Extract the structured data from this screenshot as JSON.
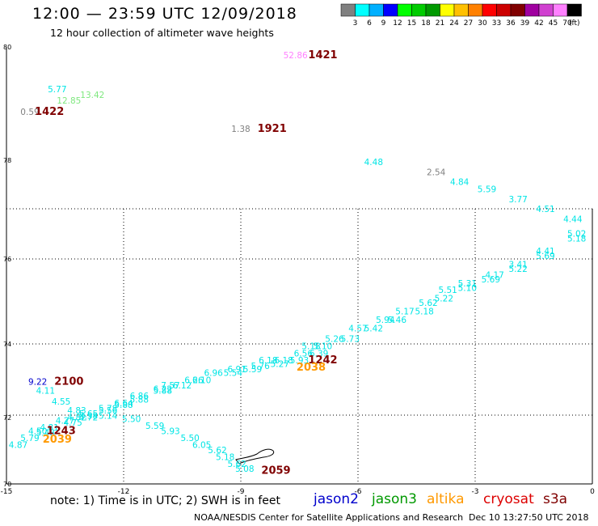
{
  "header": {
    "title": "12:00 — 23:59 UTC 12/09/2018",
    "subtitle": "12 hour collection of altimeter wave heights"
  },
  "colorbar": {
    "unit": "(ft)",
    "bins": [
      {
        "label": "3",
        "color": "#808080"
      },
      {
        "label": "6",
        "color": "#00ffff"
      },
      {
        "label": "9",
        "color": "#00b0ff"
      },
      {
        "label": "12",
        "color": "#0000ff"
      },
      {
        "label": "15",
        "color": "#00ff00"
      },
      {
        "label": "18",
        "color": "#00cc00"
      },
      {
        "label": "21",
        "color": "#009900"
      },
      {
        "label": "24",
        "color": "#ffff00"
      },
      {
        "label": "27",
        "color": "#ffc000"
      },
      {
        "label": "30",
        "color": "#ff8000"
      },
      {
        "label": "33",
        "color": "#ff0000"
      },
      {
        "label": "36",
        "color": "#cc0000"
      },
      {
        "label": "39",
        "color": "#800000"
      },
      {
        "label": "42",
        "color": "#a000a0"
      },
      {
        "label": "45",
        "color": "#d040d0"
      },
      {
        "label": "70",
        "color": "#ff80ff"
      },
      {
        "label": "",
        "color": "#000000"
      }
    ]
  },
  "footer": {
    "note": "note: 1) Time is in UTC; 2) SWH is in feet",
    "credit": "NOAA/NESDIS Center for Satellite Applications and Research",
    "timestamp": "Dec 10 13:27:50 UTC 2018",
    "missions": [
      {
        "name": "jason2",
        "color": "#0000cc"
      },
      {
        "name": "jason3",
        "color": "#009900"
      },
      {
        "name": "altika",
        "color": "#ff9900"
      },
      {
        "name": "cryosat",
        "color": "#dd0000"
      },
      {
        "name": "s3a",
        "color": "#800000"
      }
    ]
  },
  "chart_data": {
    "type": "scatter",
    "title": "12:00 — 23:59 UTC 12/09/2018",
    "xlim": [
      -15,
      0
    ],
    "ylim": [
      70,
      80
    ],
    "xticks": [
      "-15",
      "-12",
      "-9",
      "-6",
      "-3",
      "0"
    ],
    "yticks": [
      "70",
      "72",
      "74",
      "76",
      "78",
      "80"
    ],
    "grid": true,
    "points": [
      {
        "x": -13.7,
        "y": 79.2,
        "label": "5.77",
        "color": "#00e5e5"
      },
      {
        "x": -12.8,
        "y": 79.1,
        "label": "13.42",
        "color": "#7fe87f"
      },
      {
        "x": -13.4,
        "y": 79.0,
        "label": "12.85",
        "color": "#7fe87f"
      },
      {
        "x": -14.4,
        "y": 78.8,
        "label": "0.59",
        "color": "#808080"
      },
      {
        "x": -9.0,
        "y": 78.5,
        "label": "1.38",
        "color": "#808080"
      },
      {
        "x": -7.6,
        "y": 79.8,
        "label": "52.86",
        "color": "#ff80ff"
      },
      {
        "x": -5.6,
        "y": 77.9,
        "label": "4.48",
        "color": "#00e5e5"
      },
      {
        "x": -4.0,
        "y": 77.7,
        "label": "2.54",
        "color": "#808080"
      },
      {
        "x": -3.4,
        "y": 77.5,
        "label": "4.84",
        "color": "#00e5e5"
      },
      {
        "x": -2.7,
        "y": 77.35,
        "label": "5.59",
        "color": "#00e5e5"
      },
      {
        "x": -1.9,
        "y": 77.15,
        "label": "3.77",
        "color": "#00e5e5"
      },
      {
        "x": -1.2,
        "y": 76.95,
        "label": "4.51",
        "color": "#00e5e5"
      },
      {
        "x": -0.5,
        "y": 76.75,
        "label": "4.44",
        "color": "#00e5e5"
      },
      {
        "x": -0.4,
        "y": 76.45,
        "label": "5.02",
        "color": "#00e5e5"
      },
      {
        "x": -0.4,
        "y": 76.35,
        "label": "5.18",
        "color": "#00e5e5"
      },
      {
        "x": -1.2,
        "y": 76.1,
        "label": "4.41",
        "color": "#00e5e5"
      },
      {
        "x": -1.2,
        "y": 76.0,
        "label": "5.69",
        "color": "#00e5e5"
      },
      {
        "x": -1.9,
        "y": 75.8,
        "label": "3.41",
        "color": "#00e5e5"
      },
      {
        "x": -1.9,
        "y": 75.7,
        "label": "5.22",
        "color": "#00e5e5"
      },
      {
        "x": -2.5,
        "y": 75.55,
        "label": "4.17",
        "color": "#00e5e5"
      },
      {
        "x": -2.6,
        "y": 75.45,
        "label": "5.69",
        "color": "#00e5e5"
      },
      {
        "x": -3.2,
        "y": 75.35,
        "label": "5.31",
        "color": "#00e5e5"
      },
      {
        "x": -3.2,
        "y": 75.25,
        "label": "5.10",
        "color": "#00e5e5"
      },
      {
        "x": -3.7,
        "y": 75.2,
        "label": "5.51",
        "color": "#00e5e5"
      },
      {
        "x": -3.8,
        "y": 75.0,
        "label": "5.22",
        "color": "#00e5e5"
      },
      {
        "x": -4.2,
        "y": 74.9,
        "label": "5.62",
        "color": "#00e5e5"
      },
      {
        "x": -4.3,
        "y": 74.7,
        "label": "5.18",
        "color": "#00e5e5"
      },
      {
        "x": -4.8,
        "y": 74.7,
        "label": "5.17",
        "color": "#00e5e5"
      },
      {
        "x": -5.0,
        "y": 74.5,
        "label": "5.46",
        "color": "#00e5e5"
      },
      {
        "x": -5.3,
        "y": 74.5,
        "label": "5.94",
        "color": "#00e5e5"
      },
      {
        "x": -5.6,
        "y": 74.3,
        "label": "5.42",
        "color": "#00e5e5"
      },
      {
        "x": -6.0,
        "y": 74.3,
        "label": "4.57",
        "color": "#00e5e5"
      },
      {
        "x": -6.2,
        "y": 74.05,
        "label": "5.73",
        "color": "#00e5e5"
      },
      {
        "x": -6.6,
        "y": 74.05,
        "label": "5.26",
        "color": "#00e5e5"
      },
      {
        "x": -6.9,
        "y": 73.85,
        "label": "5.10",
        "color": "#00e5e5"
      },
      {
        "x": -7.2,
        "y": 73.85,
        "label": "5.18",
        "color": "#00e5e5"
      },
      {
        "x": -7.0,
        "y": 73.65,
        "label": "6.39",
        "color": "#00e5e5"
      },
      {
        "x": -7.4,
        "y": 73.65,
        "label": "6.56",
        "color": "#00e5e5"
      },
      {
        "x": -7.5,
        "y": 73.45,
        "label": "5.93",
        "color": "#00e5e5"
      },
      {
        "x": -7.9,
        "y": 73.45,
        "label": "6.18",
        "color": "#00e5e5"
      },
      {
        "x": -8.3,
        "y": 73.45,
        "label": "6.18",
        "color": "#00e5e5"
      },
      {
        "x": -8.0,
        "y": 73.35,
        "label": "5.27",
        "color": "#00e5e5"
      },
      {
        "x": -8.5,
        "y": 73.3,
        "label": "5.76",
        "color": "#00e5e5"
      },
      {
        "x": -8.7,
        "y": 73.2,
        "label": "5.59",
        "color": "#00e5e5"
      },
      {
        "x": -9.1,
        "y": 73.2,
        "label": "6.91",
        "color": "#00e5e5"
      },
      {
        "x": -9.2,
        "y": 73.1,
        "label": "5.54",
        "color": "#00e5e5"
      },
      {
        "x": -9.7,
        "y": 73.1,
        "label": "6.96",
        "color": "#00e5e5"
      },
      {
        "x": -10.0,
        "y": 72.9,
        "label": "6.10",
        "color": "#00e5e5"
      },
      {
        "x": -10.2,
        "y": 72.9,
        "label": "6.26",
        "color": "#00e5e5"
      },
      {
        "x": -10.5,
        "y": 72.75,
        "label": "6.12",
        "color": "#00e5e5"
      },
      {
        "x": -10.8,
        "y": 72.75,
        "label": "7.57",
        "color": "#00e5e5"
      },
      {
        "x": -11.0,
        "y": 72.6,
        "label": "5.88",
        "color": "#00e5e5"
      },
      {
        "x": -11.0,
        "y": 72.65,
        "label": "6.22",
        "color": "#00e5e5"
      },
      {
        "x": -11.6,
        "y": 72.35,
        "label": "5.88",
        "color": "#00e5e5"
      },
      {
        "x": -11.6,
        "y": 72.45,
        "label": "6.86",
        "color": "#00e5e5"
      },
      {
        "x": -12.0,
        "y": 72.2,
        "label": "5.88",
        "color": "#00e5e5"
      },
      {
        "x": -12.0,
        "y": 72.25,
        "label": "6.64",
        "color": "#00e5e5"
      },
      {
        "x": -12.4,
        "y": 72.05,
        "label": "5.56",
        "color": "#00e5e5"
      },
      {
        "x": -12.4,
        "y": 72.1,
        "label": "5.78",
        "color": "#00e5e5"
      },
      {
        "x": -12.9,
        "y": 71.95,
        "label": "5.65",
        "color": "#00e5e5"
      },
      {
        "x": -12.9,
        "y": 71.9,
        "label": "5.38",
        "color": "#00e5e5"
      },
      {
        "x": -13.2,
        "y": 72.05,
        "label": "4.83",
        "color": "#00e5e5"
      },
      {
        "x": -13.2,
        "y": 71.85,
        "label": "4.82",
        "color": "#00e5e5"
      },
      {
        "x": -12.9,
        "y": 71.85,
        "label": "4.72",
        "color": "#00e5e5"
      },
      {
        "x": -12.4,
        "y": 71.9,
        "label": "5.14",
        "color": "#00e5e5"
      },
      {
        "x": -13.6,
        "y": 72.3,
        "label": "4.55",
        "color": "#00e5e5"
      },
      {
        "x": -13.5,
        "y": 71.75,
        "label": "4.27",
        "color": "#00e5e5"
      },
      {
        "x": -13.3,
        "y": 71.7,
        "label": "4.75",
        "color": "#00e5e5"
      },
      {
        "x": -13.9,
        "y": 71.55,
        "label": "4.81",
        "color": "#00e5e5"
      },
      {
        "x": -14.2,
        "y": 71.45,
        "label": "4.50",
        "color": "#00e5e5"
      },
      {
        "x": -14.0,
        "y": 71.4,
        "label": "5.48",
        "color": "#00e5e5"
      },
      {
        "x": -14.4,
        "y": 71.25,
        "label": "5.79",
        "color": "#00e5e5"
      },
      {
        "x": -14.7,
        "y": 71.05,
        "label": "4.87",
        "color": "#00e5e5"
      },
      {
        "x": -14.0,
        "y": 72.6,
        "label": "4.11",
        "color": "#00e5e5"
      },
      {
        "x": -11.8,
        "y": 71.8,
        "label": "5.50",
        "color": "#00e5e5"
      },
      {
        "x": -11.2,
        "y": 71.6,
        "label": "5.59",
        "color": "#00e5e5"
      },
      {
        "x": -10.8,
        "y": 71.45,
        "label": "5.93",
        "color": "#00e5e5"
      },
      {
        "x": -10.3,
        "y": 71.25,
        "label": "5.50",
        "color": "#00e5e5"
      },
      {
        "x": -10.0,
        "y": 71.05,
        "label": "6.05",
        "color": "#00e5e5"
      },
      {
        "x": -9.6,
        "y": 70.9,
        "label": "5.62",
        "color": "#00e5e5"
      },
      {
        "x": -9.4,
        "y": 70.7,
        "label": "5.18",
        "color": "#00e5e5"
      },
      {
        "x": -9.1,
        "y": 70.5,
        "label": "5.62",
        "color": "#00e5e5"
      },
      {
        "x": -8.9,
        "y": 70.35,
        "label": "5.08",
        "color": "#00e5e5"
      },
      {
        "x": -14.2,
        "y": 72.85,
        "label": "9.22",
        "color": "#0000cc"
      }
    ],
    "annotations": [
      {
        "x": -6.9,
        "y": 79.8,
        "text": "1421",
        "color": "#800000"
      },
      {
        "x": -13.9,
        "y": 78.8,
        "text": "1422",
        "color": "#800000"
      },
      {
        "x": -8.2,
        "y": 78.5,
        "text": "1921",
        "color": "#800000"
      },
      {
        "x": -6.9,
        "y": 73.45,
        "text": "1242",
        "color": "#800000"
      },
      {
        "x": -7.2,
        "y": 73.25,
        "text": "2038",
        "color": "#ff9900"
      },
      {
        "x": -13.4,
        "y": 72.85,
        "text": "2100",
        "color": "#800000"
      },
      {
        "x": -13.6,
        "y": 71.45,
        "text": "1243",
        "color": "#800000"
      },
      {
        "x": -13.7,
        "y": 71.2,
        "text": "2039",
        "color": "#ff9900"
      },
      {
        "x": -8.1,
        "y": 70.3,
        "text": "2059",
        "color": "#800000"
      }
    ]
  }
}
